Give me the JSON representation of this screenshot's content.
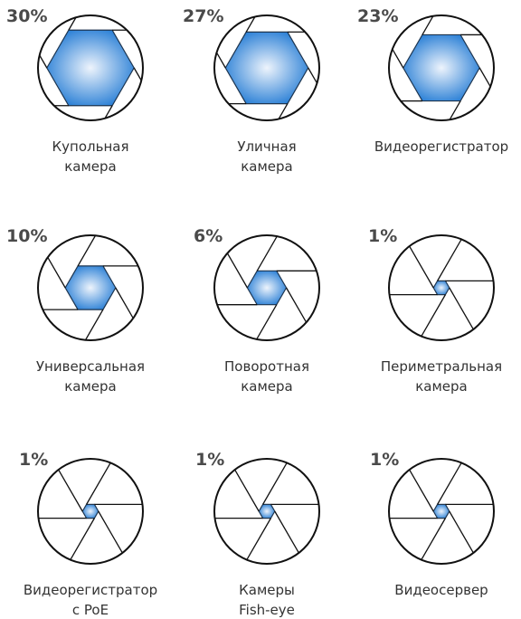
{
  "chart_data": {
    "type": "aperture",
    "categories": [
      "Купольная\nкамера",
      "Уличная\nкамера",
      "Видеорегистратор",
      "Универсальная\nкамера",
      "Поворотная\nкамера",
      "Периметральная\nкамера",
      "Видеорегистратор\nс PoE",
      "Камеры\nFish-eye",
      "Видеосервер"
    ],
    "values": [
      30,
      27,
      23,
      10,
      6,
      1,
      1,
      1,
      1
    ],
    "value_labels": [
      "30%",
      "27%",
      "23%",
      "10%",
      "6%",
      "1%",
      "1%",
      "1%",
      "1%"
    ],
    "color": "#2b80d6"
  }
}
